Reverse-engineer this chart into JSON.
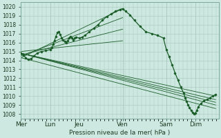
{
  "bg_color": "#cce8e0",
  "grid_color": "#a8c8bc",
  "line_color": "#1a5c28",
  "ylim": [
    1007.5,
    1020.5
  ],
  "yticks": [
    1008,
    1009,
    1010,
    1011,
    1012,
    1013,
    1014,
    1015,
    1016,
    1017,
    1018,
    1019,
    1020
  ],
  "xlabel": "Pression niveau de la mer( hPa )",
  "day_labels": [
    "Mer",
    "Lun",
    "Jeu",
    "Ven",
    "Sam",
    "Dim"
  ],
  "day_positions": [
    0.0,
    1.0,
    2.0,
    3.5,
    5.0,
    6.0
  ],
  "xlim": [
    0.0,
    6.8
  ],
  "main_line": [
    0.0,
    1014.8,
    0.08,
    1014.6,
    0.16,
    1014.3,
    0.25,
    1014.1,
    0.35,
    1014.2,
    0.45,
    1014.5,
    0.55,
    1014.8,
    0.7,
    1015.0,
    0.85,
    1015.1,
    1.0,
    1015.2,
    1.05,
    1015.4,
    1.1,
    1015.8,
    1.15,
    1016.2,
    1.2,
    1016.7,
    1.25,
    1017.1,
    1.3,
    1017.2,
    1.35,
    1016.9,
    1.4,
    1016.5,
    1.45,
    1016.3,
    1.5,
    1016.1,
    1.55,
    1016.0,
    1.6,
    1016.2,
    1.65,
    1016.5,
    1.7,
    1016.7,
    1.75,
    1016.5,
    1.8,
    1016.3,
    1.85,
    1016.5,
    1.9,
    1016.6,
    2.0,
    1016.5,
    2.1,
    1016.6,
    2.2,
    1016.8,
    2.35,
    1017.2,
    2.5,
    1017.6,
    2.65,
    1018.0,
    2.8,
    1018.5,
    2.95,
    1018.9,
    3.1,
    1019.2,
    3.25,
    1019.5,
    3.4,
    1019.7,
    3.5,
    1019.8,
    3.6,
    1019.5,
    3.75,
    1019.1,
    3.9,
    1018.5,
    4.1,
    1017.8,
    4.3,
    1017.2,
    4.5,
    1017.0,
    4.7,
    1016.8,
    4.9,
    1016.5,
    5.0,
    1015.2,
    5.1,
    1014.4,
    5.2,
    1013.5,
    5.3,
    1012.6,
    5.4,
    1011.8,
    5.5,
    1011.0,
    5.6,
    1010.3,
    5.65,
    1009.8,
    5.7,
    1009.4,
    5.75,
    1009.0,
    5.8,
    1008.7,
    5.85,
    1008.4,
    5.9,
    1008.2,
    5.95,
    1008.0,
    6.0,
    1008.1,
    6.05,
    1008.4,
    6.1,
    1008.8,
    6.2,
    1009.2,
    6.3,
    1009.5,
    6.4,
    1009.6,
    6.5,
    1009.8,
    6.6,
    1010.0,
    6.7,
    1010.2
  ],
  "fan_lines": [
    [
      0.0,
      1014.8,
      6.7,
      1009.0
    ],
    [
      0.0,
      1014.8,
      6.7,
      1009.3
    ],
    [
      0.0,
      1014.8,
      6.7,
      1009.6
    ],
    [
      0.0,
      1014.8,
      6.7,
      1010.0
    ],
    [
      0.0,
      1014.3,
      6.7,
      1008.6
    ],
    [
      0.0,
      1014.3,
      3.5,
      1019.8
    ],
    [
      0.0,
      1014.5,
      3.5,
      1018.8
    ],
    [
      0.0,
      1014.6,
      3.5,
      1017.5
    ],
    [
      0.0,
      1015.0,
      3.5,
      1016.2
    ]
  ],
  "figsize": [
    3.2,
    2.0
  ],
  "dpi": 100
}
